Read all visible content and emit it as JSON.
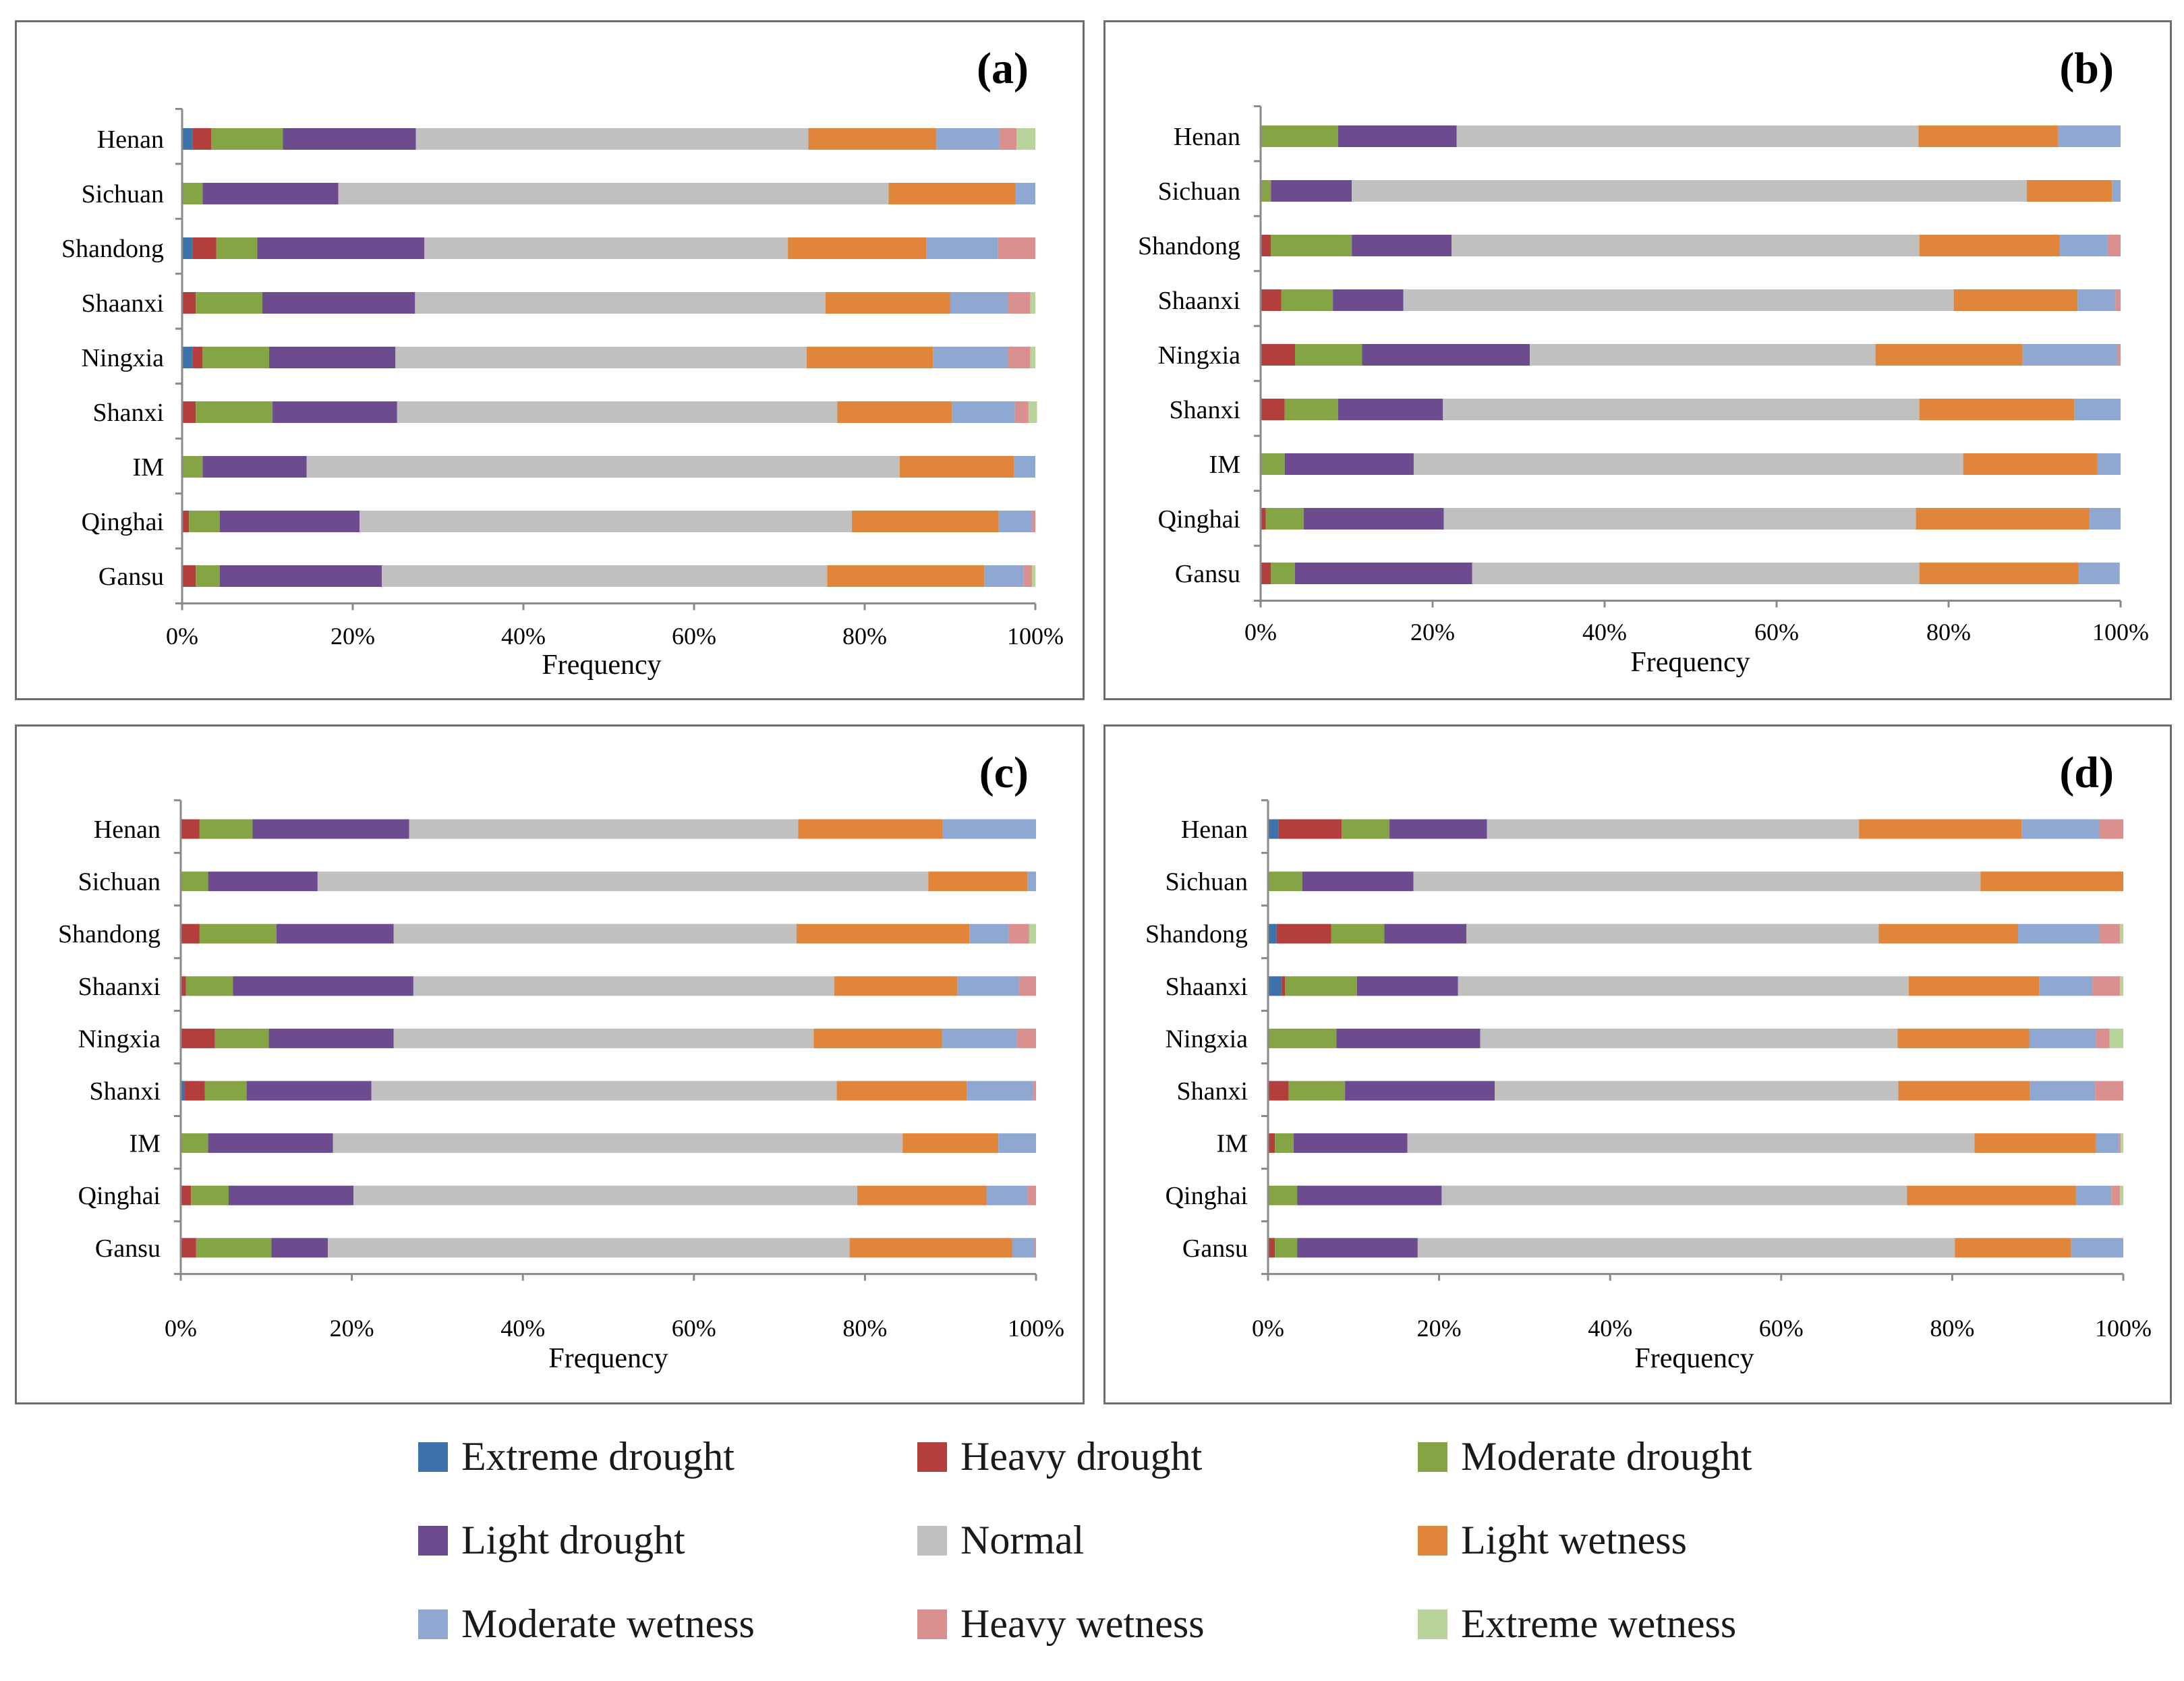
{
  "legend": {
    "items": [
      {
        "label": "Extreme drought",
        "color": "#3d71aa"
      },
      {
        "label": "Heavy drought",
        "color": "#b33f3c"
      },
      {
        "label": "Moderate drought",
        "color": "#85a444"
      },
      {
        "label": "Light drought",
        "color": "#6c4c8e"
      },
      {
        "label": "Normal",
        "color": "#c0c0c0"
      },
      {
        "label": "Light wetness",
        "color": "#e0853a"
      },
      {
        "label": "Moderate wetness",
        "color": "#8fa8d2"
      },
      {
        "label": "Heavy wetness",
        "color": "#d9908f"
      },
      {
        "label": "Extreme wetness",
        "color": "#b9d49a"
      }
    ]
  },
  "chart_data": [
    {
      "type": "bar",
      "orientation": "horizontal",
      "stacked": "percent",
      "panel_label": "(a)",
      "xlabel": "Frequency",
      "xticks": [
        "0%",
        "20%",
        "40%",
        "60%",
        "80%",
        "100%"
      ],
      "xlim": [
        0,
        100
      ],
      "categories": [
        "Henan",
        "Sichuan",
        "Shandong",
        "Shaanxi",
        "Ningxia",
        "Shanxi",
        "IM",
        "Qinghai",
        "Gansu"
      ],
      "series": [
        {
          "name": "Extreme drought",
          "values": [
            1.2,
            0,
            1.2,
            0,
            1.2,
            0,
            0,
            0,
            0
          ]
        },
        {
          "name": "Heavy drought",
          "values": [
            2.2,
            0,
            2.8,
            1.6,
            1.2,
            1.6,
            0,
            0.8,
            1.6
          ]
        },
        {
          "name": "Moderate drought",
          "values": [
            8.4,
            2.4,
            4.8,
            7.8,
            7.8,
            9.0,
            2.4,
            3.6,
            2.8
          ]
        },
        {
          "name": "Light drought",
          "values": [
            15.6,
            15.9,
            19.6,
            17.9,
            14.8,
            14.6,
            12.2,
            16.4,
            19.0
          ]
        },
        {
          "name": "Normal",
          "values": [
            46.0,
            64.5,
            42.6,
            48.1,
            48.2,
            51.6,
            69.5,
            57.7,
            52.2
          ]
        },
        {
          "name": "Light wetness",
          "values": [
            15.0,
            14.9,
            16.2,
            14.6,
            14.8,
            13.4,
            13.4,
            17.2,
            18.4
          ]
        },
        {
          "name": "Moderate wetness",
          "values": [
            7.4,
            2.3,
            8.4,
            6.8,
            8.8,
            7.4,
            2.5,
            3.9,
            4.6
          ]
        },
        {
          "name": "Heavy wetness",
          "values": [
            2.0,
            0,
            4.4,
            2.6,
            2.6,
            1.6,
            0,
            0.4,
            1.0
          ]
        },
        {
          "name": "Extreme wetness",
          "values": [
            2.2,
            0,
            0,
            0.6,
            0.6,
            1.0,
            0,
            0,
            0.4
          ]
        }
      ]
    },
    {
      "type": "bar",
      "orientation": "horizontal",
      "stacked": "percent",
      "panel_label": "(b)",
      "xlabel": "Frequency",
      "xticks": [
        "0%",
        "20%",
        "40%",
        "60%",
        "80%",
        "100%"
      ],
      "xlim": [
        0,
        100
      ],
      "categories": [
        "Henan",
        "Sichuan",
        "Shandong",
        "Shaanxi",
        "Ningxia",
        "Shanxi",
        "IM",
        "Qinghai",
        "Gansu"
      ],
      "series": [
        {
          "name": "Extreme drought",
          "values": [
            0,
            0,
            0,
            0,
            0,
            0,
            0,
            0,
            0
          ]
        },
        {
          "name": "Heavy drought",
          "values": [
            0,
            0,
            1.2,
            2.4,
            4.0,
            2.8,
            0,
            0.6,
            1.2
          ]
        },
        {
          "name": "Moderate drought",
          "values": [
            9.0,
            1.2,
            9.4,
            6.0,
            7.8,
            6.2,
            2.8,
            4.4,
            2.8
          ]
        },
        {
          "name": "Light drought",
          "values": [
            13.8,
            9.4,
            11.6,
            8.2,
            19.5,
            12.2,
            15.0,
            16.3,
            20.6
          ]
        },
        {
          "name": "Normal",
          "values": [
            53.7,
            78.5,
            54.4,
            64.0,
            40.2,
            55.4,
            63.9,
            54.9,
            52.0
          ]
        },
        {
          "name": "Light wetness",
          "values": [
            16.2,
            9.9,
            16.3,
            14.4,
            17.1,
            18.0,
            15.6,
            20.2,
            18.5
          ]
        },
        {
          "name": "Moderate wetness",
          "values": [
            7.3,
            1.0,
            5.6,
            4.4,
            11.0,
            5.4,
            2.7,
            3.6,
            4.8
          ]
        },
        {
          "name": "Heavy wetness",
          "values": [
            0,
            0,
            1.5,
            0.6,
            0.4,
            0,
            0,
            0,
            0
          ]
        },
        {
          "name": "Extreme wetness",
          "values": [
            0,
            0,
            0,
            0,
            0,
            0,
            0,
            0,
            0
          ]
        }
      ]
    },
    {
      "type": "bar",
      "orientation": "horizontal",
      "stacked": "percent",
      "panel_label": "(c)",
      "xlabel": "Frequency",
      "xticks": [
        "0%",
        "20%",
        "40%",
        "60%",
        "80%",
        "100%"
      ],
      "xlim": [
        0,
        100
      ],
      "categories": [
        "Henan",
        "Sichuan",
        "Shandong",
        "Shaanxi",
        "Ningxia",
        "Shanxi",
        "IM",
        "Qinghai",
        "Gansu"
      ],
      "series": [
        {
          "name": "Extreme drought",
          "values": [
            0,
            0,
            0,
            0,
            0,
            0.4,
            0,
            0,
            0
          ]
        },
        {
          "name": "Heavy drought",
          "values": [
            2.2,
            0,
            2.2,
            0.6,
            4.0,
            2.4,
            0,
            1.2,
            1.8
          ]
        },
        {
          "name": "Moderate drought",
          "values": [
            6.2,
            3.2,
            9.0,
            5.5,
            6.3,
            4.9,
            3.2,
            4.4,
            8.8
          ]
        },
        {
          "name": "Light drought",
          "values": [
            18.3,
            12.8,
            13.7,
            21.1,
            14.6,
            14.6,
            14.6,
            14.6,
            6.6
          ]
        },
        {
          "name": "Normal",
          "values": [
            45.5,
            71.4,
            47.1,
            49.2,
            49.1,
            54.4,
            66.6,
            58.9,
            61.0
          ]
        },
        {
          "name": "Light wetness",
          "values": [
            16.9,
            11.6,
            20.2,
            14.4,
            15.0,
            15.2,
            11.2,
            15.1,
            19.0
          ]
        },
        {
          "name": "Moderate wetness",
          "values": [
            10.9,
            1.0,
            4.6,
            7.2,
            8.8,
            7.8,
            4.4,
            4.8,
            2.6
          ]
        },
        {
          "name": "Heavy wetness",
          "values": [
            0,
            0,
            2.4,
            2.0,
            2.2,
            0.3,
            0,
            1.0,
            0.2
          ]
        },
        {
          "name": "Extreme wetness",
          "values": [
            0,
            0,
            0.8,
            0,
            0,
            0,
            0,
            0,
            0
          ]
        }
      ]
    },
    {
      "type": "bar",
      "orientation": "horizontal",
      "stacked": "percent",
      "panel_label": "(d)",
      "xlabel": "Frequency",
      "xticks": [
        "0%",
        "20%",
        "40%",
        "60%",
        "80%",
        "100%"
      ],
      "xlim": [
        0,
        100
      ],
      "categories": [
        "Henan",
        "Sichuan",
        "Shandong",
        "Shaanxi",
        "Ningxia",
        "Shanxi",
        "IM",
        "Qinghai",
        "Gansu"
      ],
      "series": [
        {
          "name": "Extreme drought",
          "values": [
            1.2,
            0,
            1.0,
            1.6,
            0,
            0,
            0,
            0,
            0
          ]
        },
        {
          "name": "Heavy drought",
          "values": [
            7.4,
            0,
            6.4,
            0.4,
            0,
            2.4,
            0.8,
            0,
            0.8
          ]
        },
        {
          "name": "Moderate drought",
          "values": [
            5.6,
            4.0,
            6.2,
            8.4,
            8.0,
            6.6,
            2.2,
            3.4,
            2.6
          ]
        },
        {
          "name": "Light drought",
          "values": [
            11.4,
            13.0,
            9.6,
            11.8,
            16.8,
            17.5,
            13.3,
            16.9,
            14.1
          ]
        },
        {
          "name": "Normal",
          "values": [
            43.5,
            66.3,
            48.2,
            52.7,
            48.8,
            47.2,
            66.3,
            54.4,
            62.8
          ]
        },
        {
          "name": "Light wetness",
          "values": [
            19.0,
            16.7,
            16.3,
            15.3,
            15.4,
            15.4,
            14.2,
            19.8,
            13.6
          ]
        },
        {
          "name": "Moderate wetness",
          "values": [
            9.1,
            0,
            9.5,
            6.2,
            7.8,
            7.6,
            2.7,
            4.1,
            6.1
          ]
        },
        {
          "name": "Heavy wetness",
          "values": [
            2.8,
            0,
            2.4,
            3.2,
            1.6,
            3.3,
            0.2,
            1.0,
            0
          ]
        },
        {
          "name": "Extreme wetness",
          "values": [
            0,
            0,
            0.4,
            0.4,
            1.6,
            0,
            0.3,
            0.4,
            0
          ]
        }
      ]
    }
  ]
}
